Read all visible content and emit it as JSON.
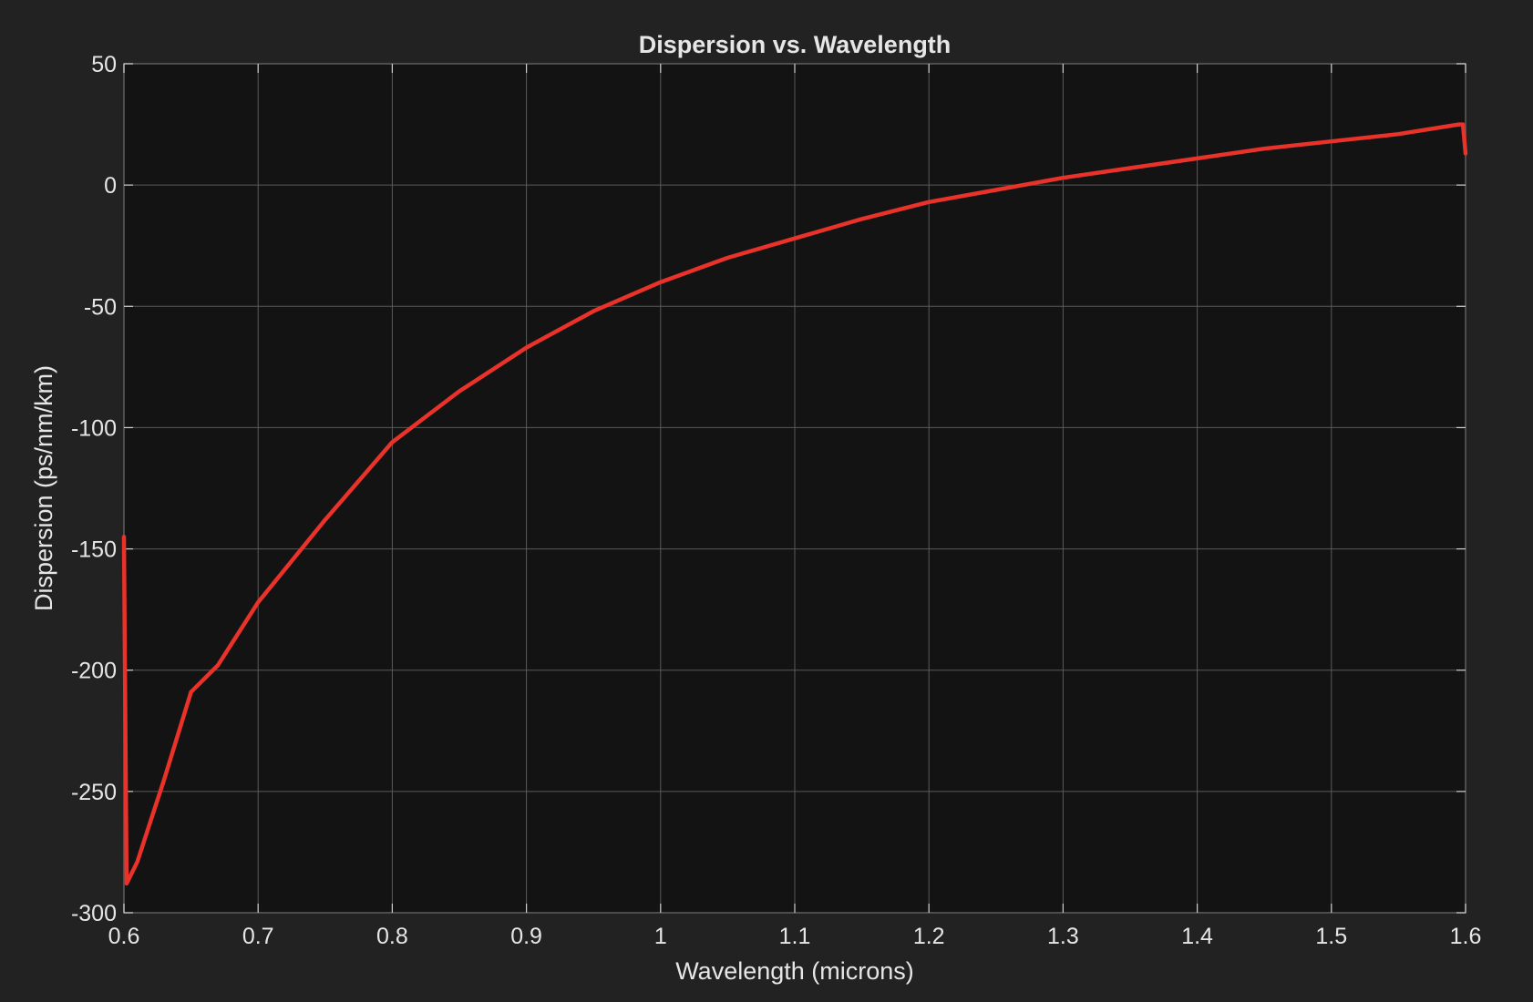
{
  "chart_data": {
    "type": "line",
    "title": "Dispersion vs. Wavelength",
    "xlabel": "Wavelength (microns)",
    "ylabel": "Dispersion (ps/nm/km)",
    "xlim": [
      0.6,
      1.6
    ],
    "ylim": [
      -300,
      50
    ],
    "xticks": [
      "0.6",
      "0.7",
      "0.8",
      "0.9",
      "1",
      "1.1",
      "1.2",
      "1.3",
      "1.4",
      "1.5",
      "1.6"
    ],
    "yticks": [
      "-300",
      "-250",
      "-200",
      "-150",
      "-100",
      "-50",
      "0",
      "50"
    ],
    "grid": true,
    "series": [
      {
        "color": "#e8322a",
        "x": [
          0.6,
          0.602,
          0.61,
          0.62,
          0.63,
          0.65,
          0.67,
          0.7,
          0.75,
          0.8,
          0.85,
          0.9,
          0.95,
          1.0,
          1.05,
          1.1,
          1.15,
          1.2,
          1.25,
          1.3,
          1.35,
          1.4,
          1.45,
          1.5,
          1.55,
          1.595,
          1.598,
          1.6
        ],
        "y": [
          -145,
          -288,
          -279,
          -262,
          -245,
          -209,
          -198,
          -172,
          -138,
          -106,
          -85,
          -67,
          -52,
          -40,
          -30,
          -22,
          -14,
          -7,
          -2,
          3,
          7,
          11,
          15,
          18,
          21,
          25,
          25,
          13
        ]
      }
    ]
  }
}
